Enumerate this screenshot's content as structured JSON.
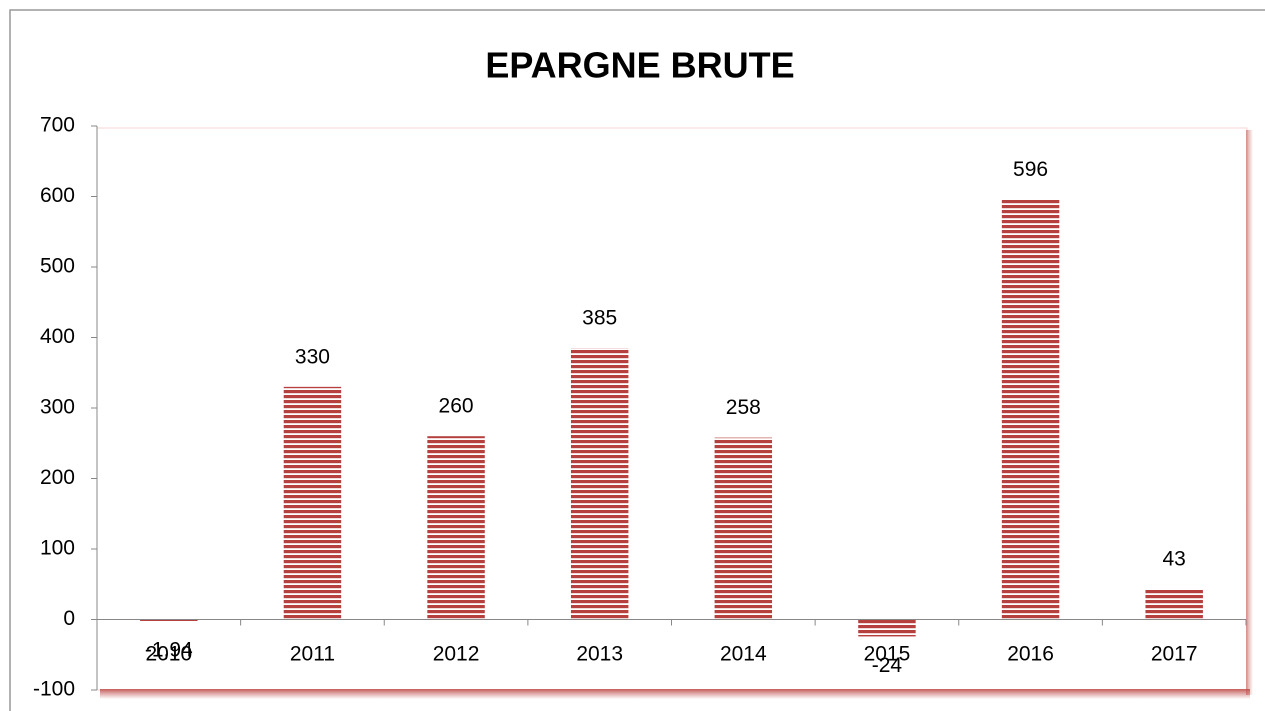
{
  "chart_data": {
    "type": "bar",
    "title": "EPARGNE BRUTE",
    "categories": [
      "2010",
      "2011",
      "2012",
      "2013",
      "2014",
      "2015",
      "2016",
      "2017"
    ],
    "values": [
      -1.94,
      330,
      260,
      385,
      258,
      -24,
      596,
      43
    ],
    "value_labels": [
      "-1,94",
      "330",
      "260",
      "385",
      "258",
      "-24",
      "596",
      "43"
    ],
    "color": "#b5403d",
    "ylim": [
      -100,
      700
    ],
    "yticks": [
      -100,
      0,
      100,
      200,
      300,
      400,
      500,
      600,
      700
    ],
    "grid": false
  }
}
